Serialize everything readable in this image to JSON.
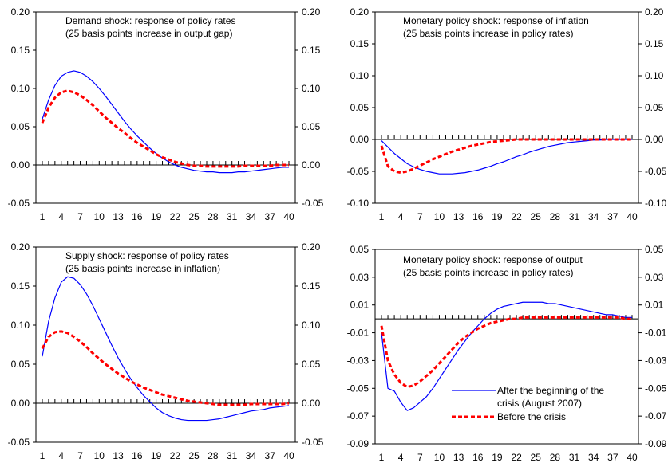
{
  "colors": {
    "after": "#0000ff",
    "before": "#ff0000",
    "axis": "#000000",
    "background": "#ffffff"
  },
  "legend": {
    "after_label_line1": "After the beginning of the",
    "after_label_line2": "crisis (August 2007)",
    "before_label": "Before the crisis"
  },
  "chart_data": [
    {
      "type": "line",
      "title_line1": "Demand shock: response of policy rates",
      "title_line2": "(25 basis points increase in output gap)",
      "x": [
        1,
        2,
        3,
        4,
        5,
        6,
        7,
        8,
        9,
        10,
        11,
        12,
        13,
        14,
        15,
        16,
        17,
        18,
        19,
        20,
        21,
        22,
        23,
        24,
        25,
        26,
        27,
        28,
        29,
        30,
        31,
        32,
        33,
        34,
        35,
        36,
        37,
        38,
        39,
        40
      ],
      "xticks": [
        "1",
        "4",
        "7",
        "10",
        "13",
        "16",
        "19",
        "22",
        "25",
        "28",
        "31",
        "34",
        "37",
        "40"
      ],
      "ylim": [
        -0.05,
        0.2
      ],
      "yticks": [
        "-0.05",
        "0.00",
        "0.05",
        "0.10",
        "0.15",
        "0.20"
      ],
      "secondary_yticks": [
        "-0.05",
        "0.00",
        "0.05",
        "0.10",
        "0.15",
        "0.20"
      ],
      "series": [
        {
          "key": "after",
          "values": [
            0.06,
            0.085,
            0.104,
            0.116,
            0.121,
            0.123,
            0.121,
            0.116,
            0.109,
            0.1,
            0.09,
            0.079,
            0.068,
            0.057,
            0.047,
            0.038,
            0.03,
            0.022,
            0.015,
            0.009,
            0.004,
            0.0,
            -0.003,
            -0.005,
            -0.007,
            -0.008,
            -0.009,
            -0.009,
            -0.01,
            -0.01,
            -0.01,
            -0.009,
            -0.009,
            -0.008,
            -0.007,
            -0.006,
            -0.005,
            -0.004,
            -0.003,
            -0.003
          ]
        },
        {
          "key": "before",
          "values": [
            0.055,
            0.075,
            0.088,
            0.095,
            0.097,
            0.095,
            0.091,
            0.085,
            0.078,
            0.07,
            0.062,
            0.055,
            0.048,
            0.042,
            0.035,
            0.029,
            0.024,
            0.019,
            0.014,
            0.01,
            0.007,
            0.004,
            0.002,
            0.0,
            -0.001,
            -0.001,
            -0.002,
            -0.002,
            -0.002,
            -0.002,
            -0.002,
            -0.002,
            -0.001,
            -0.001,
            -0.001,
            -0.001,
            -0.001,
            0.0,
            0.0,
            0.0
          ]
        }
      ]
    },
    {
      "type": "line",
      "title_line1": "Monetary policy shock: response of inflation",
      "title_line2": "(25 basis points increase in policy rates)",
      "x": [
        1,
        2,
        3,
        4,
        5,
        6,
        7,
        8,
        9,
        10,
        11,
        12,
        13,
        14,
        15,
        16,
        17,
        18,
        19,
        20,
        21,
        22,
        23,
        24,
        25,
        26,
        27,
        28,
        29,
        30,
        31,
        32,
        33,
        34,
        35,
        36,
        37,
        38,
        39,
        40
      ],
      "xticks": [
        "1",
        "4",
        "7",
        "10",
        "13",
        "16",
        "19",
        "22",
        "25",
        "28",
        "31",
        "34",
        "37",
        "40"
      ],
      "ylim": [
        -0.1,
        0.2
      ],
      "yticks": [
        "-0.10",
        "-0.05",
        "0.00",
        "0.05",
        "0.10",
        "0.15",
        "0.20"
      ],
      "secondary_yticks": [
        "-0.10",
        "-0.05",
        "0.00",
        "0.05",
        "0.10",
        "0.15",
        "0.20"
      ],
      "series": [
        {
          "key": "after",
          "values": [
            -0.002,
            -0.012,
            -0.022,
            -0.03,
            -0.038,
            -0.043,
            -0.047,
            -0.05,
            -0.052,
            -0.054,
            -0.054,
            -0.054,
            -0.053,
            -0.052,
            -0.05,
            -0.048,
            -0.045,
            -0.042,
            -0.038,
            -0.035,
            -0.031,
            -0.027,
            -0.024,
            -0.02,
            -0.017,
            -0.014,
            -0.011,
            -0.009,
            -0.007,
            -0.005,
            -0.004,
            -0.003,
            -0.002,
            -0.001,
            -0.001,
            0.0,
            0.0,
            0.0,
            0.0,
            0.0
          ]
        },
        {
          "key": "before",
          "values": [
            -0.01,
            -0.042,
            -0.05,
            -0.052,
            -0.05,
            -0.046,
            -0.041,
            -0.036,
            -0.031,
            -0.027,
            -0.023,
            -0.019,
            -0.016,
            -0.013,
            -0.01,
            -0.008,
            -0.006,
            -0.004,
            -0.003,
            -0.002,
            -0.001,
            0.0,
            0.0,
            0.0,
            0.0,
            0.0,
            0.0,
            0.0,
            0.0,
            0.0,
            0.0,
            0.0,
            0.0,
            0.0,
            0.0,
            0.0,
            0.0,
            0.0,
            0.0,
            0.0
          ]
        }
      ]
    },
    {
      "type": "line",
      "title_line1": "Supply shock: response of policy rates",
      "title_line2": "(25 basis points increase in inflation)",
      "x": [
        1,
        2,
        3,
        4,
        5,
        6,
        7,
        8,
        9,
        10,
        11,
        12,
        13,
        14,
        15,
        16,
        17,
        18,
        19,
        20,
        21,
        22,
        23,
        24,
        25,
        26,
        27,
        28,
        29,
        30,
        31,
        32,
        33,
        34,
        35,
        36,
        37,
        38,
        39,
        40
      ],
      "xticks": [
        "1",
        "4",
        "7",
        "10",
        "13",
        "16",
        "19",
        "22",
        "25",
        "28",
        "31",
        "34",
        "37",
        "40"
      ],
      "ylim": [
        -0.05,
        0.2
      ],
      "yticks": [
        "-0.05",
        "0.00",
        "0.05",
        "0.10",
        "0.15",
        "0.20"
      ],
      "secondary_yticks": [
        "-0.05",
        "0.00",
        "0.05",
        "0.10",
        "0.15",
        "0.20"
      ],
      "series": [
        {
          "key": "after",
          "values": [
            0.06,
            0.105,
            0.135,
            0.155,
            0.162,
            0.16,
            0.152,
            0.14,
            0.125,
            0.108,
            0.091,
            0.074,
            0.058,
            0.044,
            0.031,
            0.02,
            0.01,
            0.002,
            -0.006,
            -0.012,
            -0.016,
            -0.019,
            -0.021,
            -0.022,
            -0.022,
            -0.022,
            -0.022,
            -0.021,
            -0.02,
            -0.018,
            -0.016,
            -0.014,
            -0.012,
            -0.01,
            -0.009,
            -0.008,
            -0.006,
            -0.005,
            -0.004,
            -0.003
          ]
        },
        {
          "key": "before",
          "values": [
            0.07,
            0.085,
            0.091,
            0.092,
            0.09,
            0.085,
            0.079,
            0.072,
            0.064,
            0.057,
            0.05,
            0.044,
            0.038,
            0.033,
            0.028,
            0.024,
            0.02,
            0.017,
            0.014,
            0.011,
            0.009,
            0.007,
            0.005,
            0.003,
            0.002,
            0.001,
            0.0,
            -0.001,
            -0.002,
            -0.002,
            -0.002,
            -0.002,
            -0.002,
            -0.001,
            -0.001,
            -0.001,
            -0.001,
            -0.001,
            -0.001,
            0.0
          ]
        }
      ]
    },
    {
      "type": "line",
      "title_line1": "Monetary policy shock: response of output",
      "title_line2": "(25 basis points increase in policy rates)",
      "x": [
        1,
        2,
        3,
        4,
        5,
        6,
        7,
        8,
        9,
        10,
        11,
        12,
        13,
        14,
        15,
        16,
        17,
        18,
        19,
        20,
        21,
        22,
        23,
        24,
        25,
        26,
        27,
        28,
        29,
        30,
        31,
        32,
        33,
        34,
        35,
        36,
        37,
        38,
        39,
        40
      ],
      "xticks": [
        "1",
        "4",
        "7",
        "10",
        "13",
        "16",
        "19",
        "22",
        "25",
        "28",
        "31",
        "34",
        "37",
        "40"
      ],
      "ylim": [
        -0.09,
        0.05
      ],
      "yticks": [
        "-0.09",
        "-0.07",
        "-0.05",
        "-0.03",
        "-0.01",
        "0.01",
        "0.03",
        "0.05"
      ],
      "secondary_yticks": [
        "-0.09",
        "-0.07",
        "-0.05",
        "-0.03",
        "-0.01",
        "0.01",
        "0.03",
        "0.05"
      ],
      "series": [
        {
          "key": "after",
          "values": [
            -0.01,
            -0.05,
            -0.052,
            -0.06,
            -0.066,
            -0.064,
            -0.06,
            -0.056,
            -0.05,
            -0.043,
            -0.036,
            -0.029,
            -0.022,
            -0.016,
            -0.01,
            -0.005,
            0.0,
            0.004,
            0.007,
            0.009,
            0.01,
            0.011,
            0.012,
            0.012,
            0.012,
            0.012,
            0.011,
            0.011,
            0.01,
            0.009,
            0.008,
            0.007,
            0.006,
            0.005,
            0.004,
            0.003,
            0.003,
            0.002,
            0.001,
            0.001
          ]
        },
        {
          "key": "before",
          "values": [
            -0.005,
            -0.03,
            -0.04,
            -0.046,
            -0.049,
            -0.048,
            -0.045,
            -0.041,
            -0.037,
            -0.032,
            -0.027,
            -0.022,
            -0.017,
            -0.013,
            -0.01,
            -0.007,
            -0.005,
            -0.003,
            -0.002,
            -0.001,
            0.0,
            0.0,
            0.001,
            0.001,
            0.001,
            0.001,
            0.001,
            0.001,
            0.001,
            0.001,
            0.001,
            0.001,
            0.001,
            0.001,
            0.001,
            0.001,
            0.001,
            0.001,
            0.0,
            0.0
          ]
        }
      ]
    }
  ]
}
